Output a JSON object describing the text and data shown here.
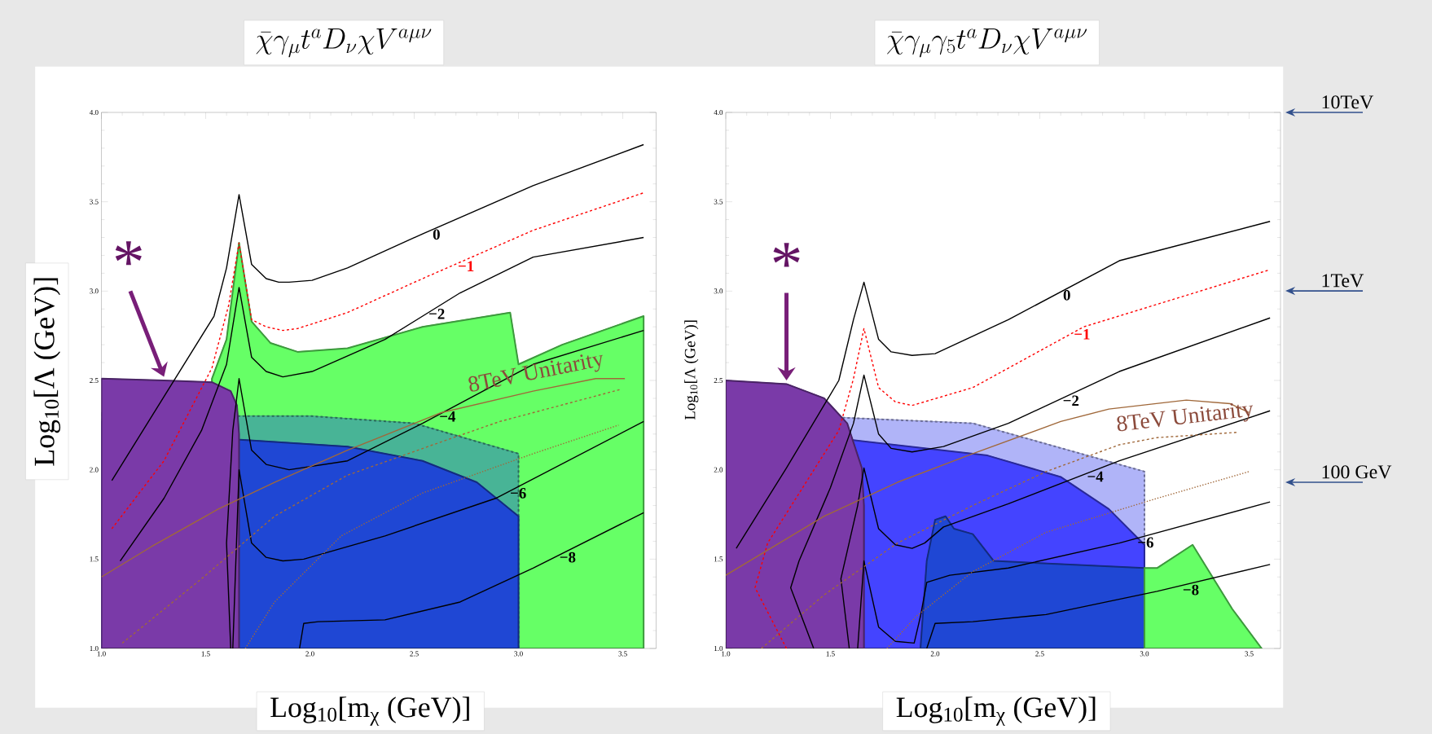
{
  "chart_data": [
    {
      "type": "line",
      "title": "\\bar{\\chi}\\gamma_{\\mu}t^{a}D_{\\nu}\\chi V^{a\\mu\\nu}",
      "xlabel": "Log$_{10}$[m$_{χ}$ (GeV)]",
      "ylabel": "Log$_{10}$[Λ (GeV)]",
      "xlim": [
        1.0,
        3.66
      ],
      "ylim": [
        1.0,
        4.0
      ],
      "xticks": [
        {
          "value": 1.0,
          "label": "1.0"
        },
        {
          "value": 1.5,
          "label": "1.5"
        },
        {
          "value": 2.0,
          "label": "2.0"
        },
        {
          "value": 2.5,
          "label": "2.5"
        },
        {
          "value": 3.0,
          "label": "3.0"
        },
        {
          "value": 3.5,
          "label": "3.5"
        }
      ],
      "yticks": [
        {
          "value": 1.0,
          "label": "1.0"
        },
        {
          "value": 1.5,
          "label": "1.5"
        },
        {
          "value": 2.0,
          "label": "2.0"
        },
        {
          "value": 2.5,
          "label": "2.5"
        },
        {
          "value": 3.0,
          "label": "3.0"
        },
        {
          "value": 3.5,
          "label": "3.5"
        },
        {
          "value": 4.0,
          "label": "4.0"
        }
      ],
      "series": [
        {
          "type": "area",
          "color": "#66ff66",
          "x": [
            1.53,
            1.6,
            1.66,
            1.72,
            1.81,
            1.94,
            2.18,
            2.54,
            2.96,
            3.0,
            3.21,
            3.6
          ],
          "values": [
            2.51,
            2.73,
            3.27,
            2.83,
            2.71,
            2.66,
            2.68,
            2.8,
            2.88,
            2.59,
            2.7,
            2.86
          ]
        },
        {
          "type": "area",
          "color": "#48b496",
          "line_style": "dashed",
          "x": [
            1.0,
            1.65,
            2.01,
            2.5,
            2.72,
            2.89,
            3.0
          ],
          "values": [
            2.32,
            2.3,
            2.3,
            2.26,
            null,
            null,
            2.09
          ]
        },
        {
          "type": "area",
          "color": "#1f47d4",
          "x": [
            1.0,
            1.65,
            2.18,
            2.54,
            2.8,
            3.0
          ],
          "values": [
            2.27,
            2.17,
            2.13,
            2.05,
            1.93,
            1.74
          ]
        },
        {
          "type": "area",
          "color": "#7a3aa8",
          "x": [
            1.0,
            1.3,
            1.53,
            1.62,
            1.65,
            1.66
          ],
          "values": [
            2.51,
            2.5,
            2.49,
            2.44,
            2.36,
            2.2
          ]
        },
        {
          "type": "line",
          "name": "0",
          "color": "#000000",
          "x": [
            1.05,
            1.54,
            1.6,
            1.66,
            1.72,
            1.79,
            1.85,
            1.9,
            2.01,
            2.18,
            2.54,
            3.07,
            3.6
          ],
          "values": [
            1.94,
            2.86,
            3.13,
            3.54,
            3.15,
            3.07,
            3.05,
            3.05,
            3.06,
            3.13,
            3.32,
            3.59,
            3.82
          ]
        },
        {
          "type": "line",
          "name": "−1",
          "color": "#ff0000",
          "line_style": "dashed",
          "x": [
            1.05,
            1.3,
            1.53,
            1.61,
            1.66,
            1.72,
            1.79,
            1.87,
            1.94,
            2.18,
            2.54,
            3.07,
            3.6
          ],
          "values": [
            1.67,
            2.05,
            2.57,
            2.92,
            3.27,
            2.84,
            2.8,
            2.78,
            2.79,
            2.88,
            3.07,
            3.34,
            3.55
          ]
        },
        {
          "type": "line",
          "name": "−2",
          "color": "#000000",
          "x": [
            1.09,
            1.3,
            1.48,
            1.6,
            1.66,
            1.72,
            1.79,
            1.87,
            2.01,
            2.36,
            2.72,
            3.07,
            3.6
          ],
          "values": [
            1.49,
            1.84,
            2.22,
            2.59,
            3.02,
            2.63,
            2.55,
            2.52,
            2.55,
            2.73,
            2.99,
            3.19,
            3.3
          ]
        },
        {
          "type": "line",
          "name": "−4",
          "color": "#000000",
          "x": [
            1.62,
            1.6,
            1.63,
            1.66,
            1.72,
            1.79,
            1.9,
            2.18,
            2.54,
            3.07,
            3.6
          ],
          "values": [
            1.0,
            1.59,
            2.22,
            2.51,
            2.11,
            2.03,
            2.0,
            2.05,
            2.26,
            2.59,
            2.78
          ]
        },
        {
          "type": "line",
          "name": "−6",
          "color": "#000000",
          "x": [
            1.63,
            1.66,
            1.72,
            1.79,
            1.87,
            1.97,
            2.36,
            2.89,
            3.6
          ],
          "values": [
            1.0,
            2.0,
            1.59,
            1.51,
            1.49,
            1.5,
            1.63,
            1.84,
            2.27
          ]
        },
        {
          "type": "line",
          "name": "−8",
          "color": "#000000",
          "x": [
            1.95,
            1.97,
            2.04,
            2.36,
            2.72,
            3.07,
            3.6
          ],
          "values": [
            1.0,
            1.14,
            1.15,
            1.16,
            1.26,
            1.45,
            1.76
          ]
        },
        {
          "type": "line",
          "name": "8TeV Unitarity",
          "color": "#a0683a",
          "x": [
            1.0,
            1.24,
            1.56,
            1.83,
            2.18,
            2.63,
            3.07,
            3.37,
            3.51
          ],
          "values": [
            1.4,
            1.57,
            1.78,
            1.93,
            2.11,
            2.32,
            2.44,
            2.51,
            2.51
          ]
        },
        {
          "type": "line",
          "color": "#a0683a",
          "line_style": "dashed",
          "x": [
            1.1,
            1.48,
            1.83,
            2.18,
            2.59,
            2.91,
            3.49
          ],
          "values": [
            1.03,
            1.39,
            1.74,
            1.97,
            2.14,
            2.27,
            2.45
          ]
        },
        {
          "type": "line",
          "color": "#a0683a",
          "line_style": "dotted",
          "x": [
            1.69,
            1.83,
            2.15,
            2.54,
            3.07,
            3.48
          ],
          "values": [
            1.0,
            1.26,
            1.63,
            1.87,
            2.09,
            2.25
          ]
        }
      ],
      "annotations": [
        {
          "text": "*",
          "x": 1.3,
          "y": 2.5
        }
      ]
    },
    {
      "type": "line",
      "title": "\\bar{\\chi}\\gamma_{\\mu}\\gamma_{5}t^{a}D_{\\nu}\\chi V^{a\\mu\\nu}",
      "xlabel": "Log$_{10}$[m$_{χ}$ (GeV)]",
      "ylabel": "Log$_{10}$[Λ (GeV)]",
      "xlim": [
        1.0,
        3.65
      ],
      "ylim": [
        1.0,
        4.0
      ],
      "xticks": [
        {
          "value": 1.0,
          "label": "1.0"
        },
        {
          "value": 1.5,
          "label": "1.5"
        },
        {
          "value": 2.0,
          "label": "2.0"
        },
        {
          "value": 2.5,
          "label": "2.5"
        },
        {
          "value": 3.0,
          "label": "3.0"
        },
        {
          "value": 3.5,
          "label": "3.5"
        }
      ],
      "yticks": [
        {
          "value": 1.0,
          "label": "1.0"
        },
        {
          "value": 1.5,
          "label": "1.5"
        },
        {
          "value": 2.0,
          "label": "2.0"
        },
        {
          "value": 2.5,
          "label": "2.5"
        },
        {
          "value": 3.0,
          "label": "3.0"
        },
        {
          "value": 3.5,
          "label": "3.5"
        },
        {
          "value": 4.0,
          "label": "4.0"
        }
      ],
      "series": [
        {
          "type": "area",
          "color": "#b0b4f8",
          "line_style": "dashed",
          "x": [
            1.0,
            2.18,
            2.53,
            2.8,
            3.0
          ],
          "values": [
            2.32,
            2.26,
            null,
            null,
            1.99
          ]
        },
        {
          "type": "area",
          "color": "#4444ff",
          "x": [
            1.0,
            1.65,
            2.25,
            2.6,
            2.83,
            3.0
          ],
          "values": [
            2.25,
            2.16,
            2.08,
            1.96,
            1.78,
            1.58
          ]
        },
        {
          "type": "area",
          "color": "#1f47d4",
          "x": [
            1.93,
            1.96,
            2.0,
            2.05,
            2.09,
            2.18,
            2.28,
            3.0
          ],
          "values": [
            1.0,
            1.49,
            1.72,
            1.74,
            1.67,
            1.64,
            1.49,
            1.45
          ]
        },
        {
          "type": "area",
          "color": "#66ff66",
          "x": [
            3.0,
            3.06,
            3.23,
            3.42,
            3.56
          ],
          "values": [
            1.45,
            1.45,
            1.58,
            1.22,
            1.0
          ]
        },
        {
          "type": "area",
          "color": "#7a3aa8",
          "x": [
            1.0,
            1.29,
            1.47,
            1.58,
            1.65,
            1.66
          ],
          "values": [
            2.5,
            2.48,
            2.4,
            2.26,
            2.01,
            1.8
          ]
        },
        {
          "type": "line",
          "name": "0",
          "color": "#000000",
          "x": [
            1.05,
            1.29,
            1.54,
            1.61,
            1.66,
            1.73,
            1.79,
            1.89,
            2.0,
            2.35,
            2.88,
            3.6
          ],
          "values": [
            1.56,
            2.01,
            2.5,
            2.84,
            3.05,
            2.73,
            2.66,
            2.64,
            2.65,
            2.84,
            3.17,
            3.39
          ]
        },
        {
          "type": "line",
          "name": "−1",
          "color": "#ff0000",
          "line_style": "dashed",
          "x": [
            1.29,
            1.14,
            1.2,
            1.54,
            1.61,
            1.66,
            1.73,
            1.81,
            1.89,
            2.18,
            2.71,
            3.6
          ],
          "values": [
            1.0,
            1.34,
            1.59,
            2.22,
            2.51,
            2.79,
            2.46,
            2.38,
            2.36,
            2.46,
            2.8,
            3.12
          ]
        },
        {
          "type": "line",
          "name": "−2",
          "color": "#000000",
          "x": [
            1.42,
            1.31,
            1.35,
            1.5,
            1.61,
            1.66,
            1.73,
            1.79,
            1.89,
            2.04,
            2.35,
            2.88,
            3.6
          ],
          "values": [
            1.0,
            1.34,
            1.49,
            1.9,
            2.26,
            2.53,
            2.2,
            2.12,
            2.1,
            2.13,
            2.26,
            2.55,
            2.85
          ]
        },
        {
          "type": "line",
          "name": "−4",
          "color": "#000000",
          "x": [
            1.59,
            1.55,
            1.63,
            1.66,
            1.73,
            1.81,
            1.89,
            1.95,
            2.04,
            2.35,
            2.88,
            3.6
          ],
          "values": [
            1.0,
            1.39,
            1.8,
            2.01,
            1.67,
            1.58,
            1.56,
            1.59,
            1.68,
            1.81,
            2.05,
            2.33
          ]
        },
        {
          "type": "line",
          "name": "−6",
          "color": "#000000",
          "x": [
            1.63,
            1.66,
            1.73,
            1.81,
            1.9,
            1.93,
            1.96,
            2.07,
            2.35,
            2.88,
            3.6
          ],
          "values": [
            1.0,
            1.49,
            1.12,
            1.04,
            1.03,
            1.18,
            1.37,
            1.41,
            1.45,
            1.59,
            1.82
          ]
        },
        {
          "type": "line",
          "name": "−8",
          "color": "#000000",
          "x": [
            1.96,
            2.0,
            2.18,
            2.53,
            3.06,
            3.6
          ],
          "values": [
            1.0,
            1.14,
            1.15,
            1.19,
            1.32,
            1.47
          ]
        },
        {
          "type": "line",
          "name": "8TeV Unitarity",
          "color": "#a0683a",
          "x": [
            1.0,
            1.47,
            1.82,
            2.18,
            2.6,
            2.83,
            3.2,
            3.41,
            3.5
          ],
          "values": [
            1.41,
            1.74,
            1.93,
            2.09,
            2.27,
            2.34,
            2.39,
            2.37,
            2.32
          ]
        },
        {
          "type": "line",
          "color": "#a0683a",
          "line_style": "dashed",
          "x": [
            1.17,
            1.47,
            1.82,
            2.18,
            2.53,
            2.88,
            3.06,
            3.45
          ],
          "values": [
            1.0,
            1.3,
            1.59,
            1.8,
            1.99,
            2.14,
            2.18,
            2.21
          ]
        },
        {
          "type": "line",
          "color": "#a0683a",
          "line_style": "dotted",
          "x": [
            1.77,
            1.91,
            2.18,
            2.53,
            3.06,
            3.5
          ],
          "values": [
            1.0,
            1.18,
            1.43,
            1.65,
            1.84,
            1.99
          ]
        }
      ],
      "annotations": [
        {
          "text": "*",
          "x": 1.29,
          "y": 2.48
        },
        "10TeV",
        "1TeV",
        "100 GeV"
      ]
    }
  ]
}
